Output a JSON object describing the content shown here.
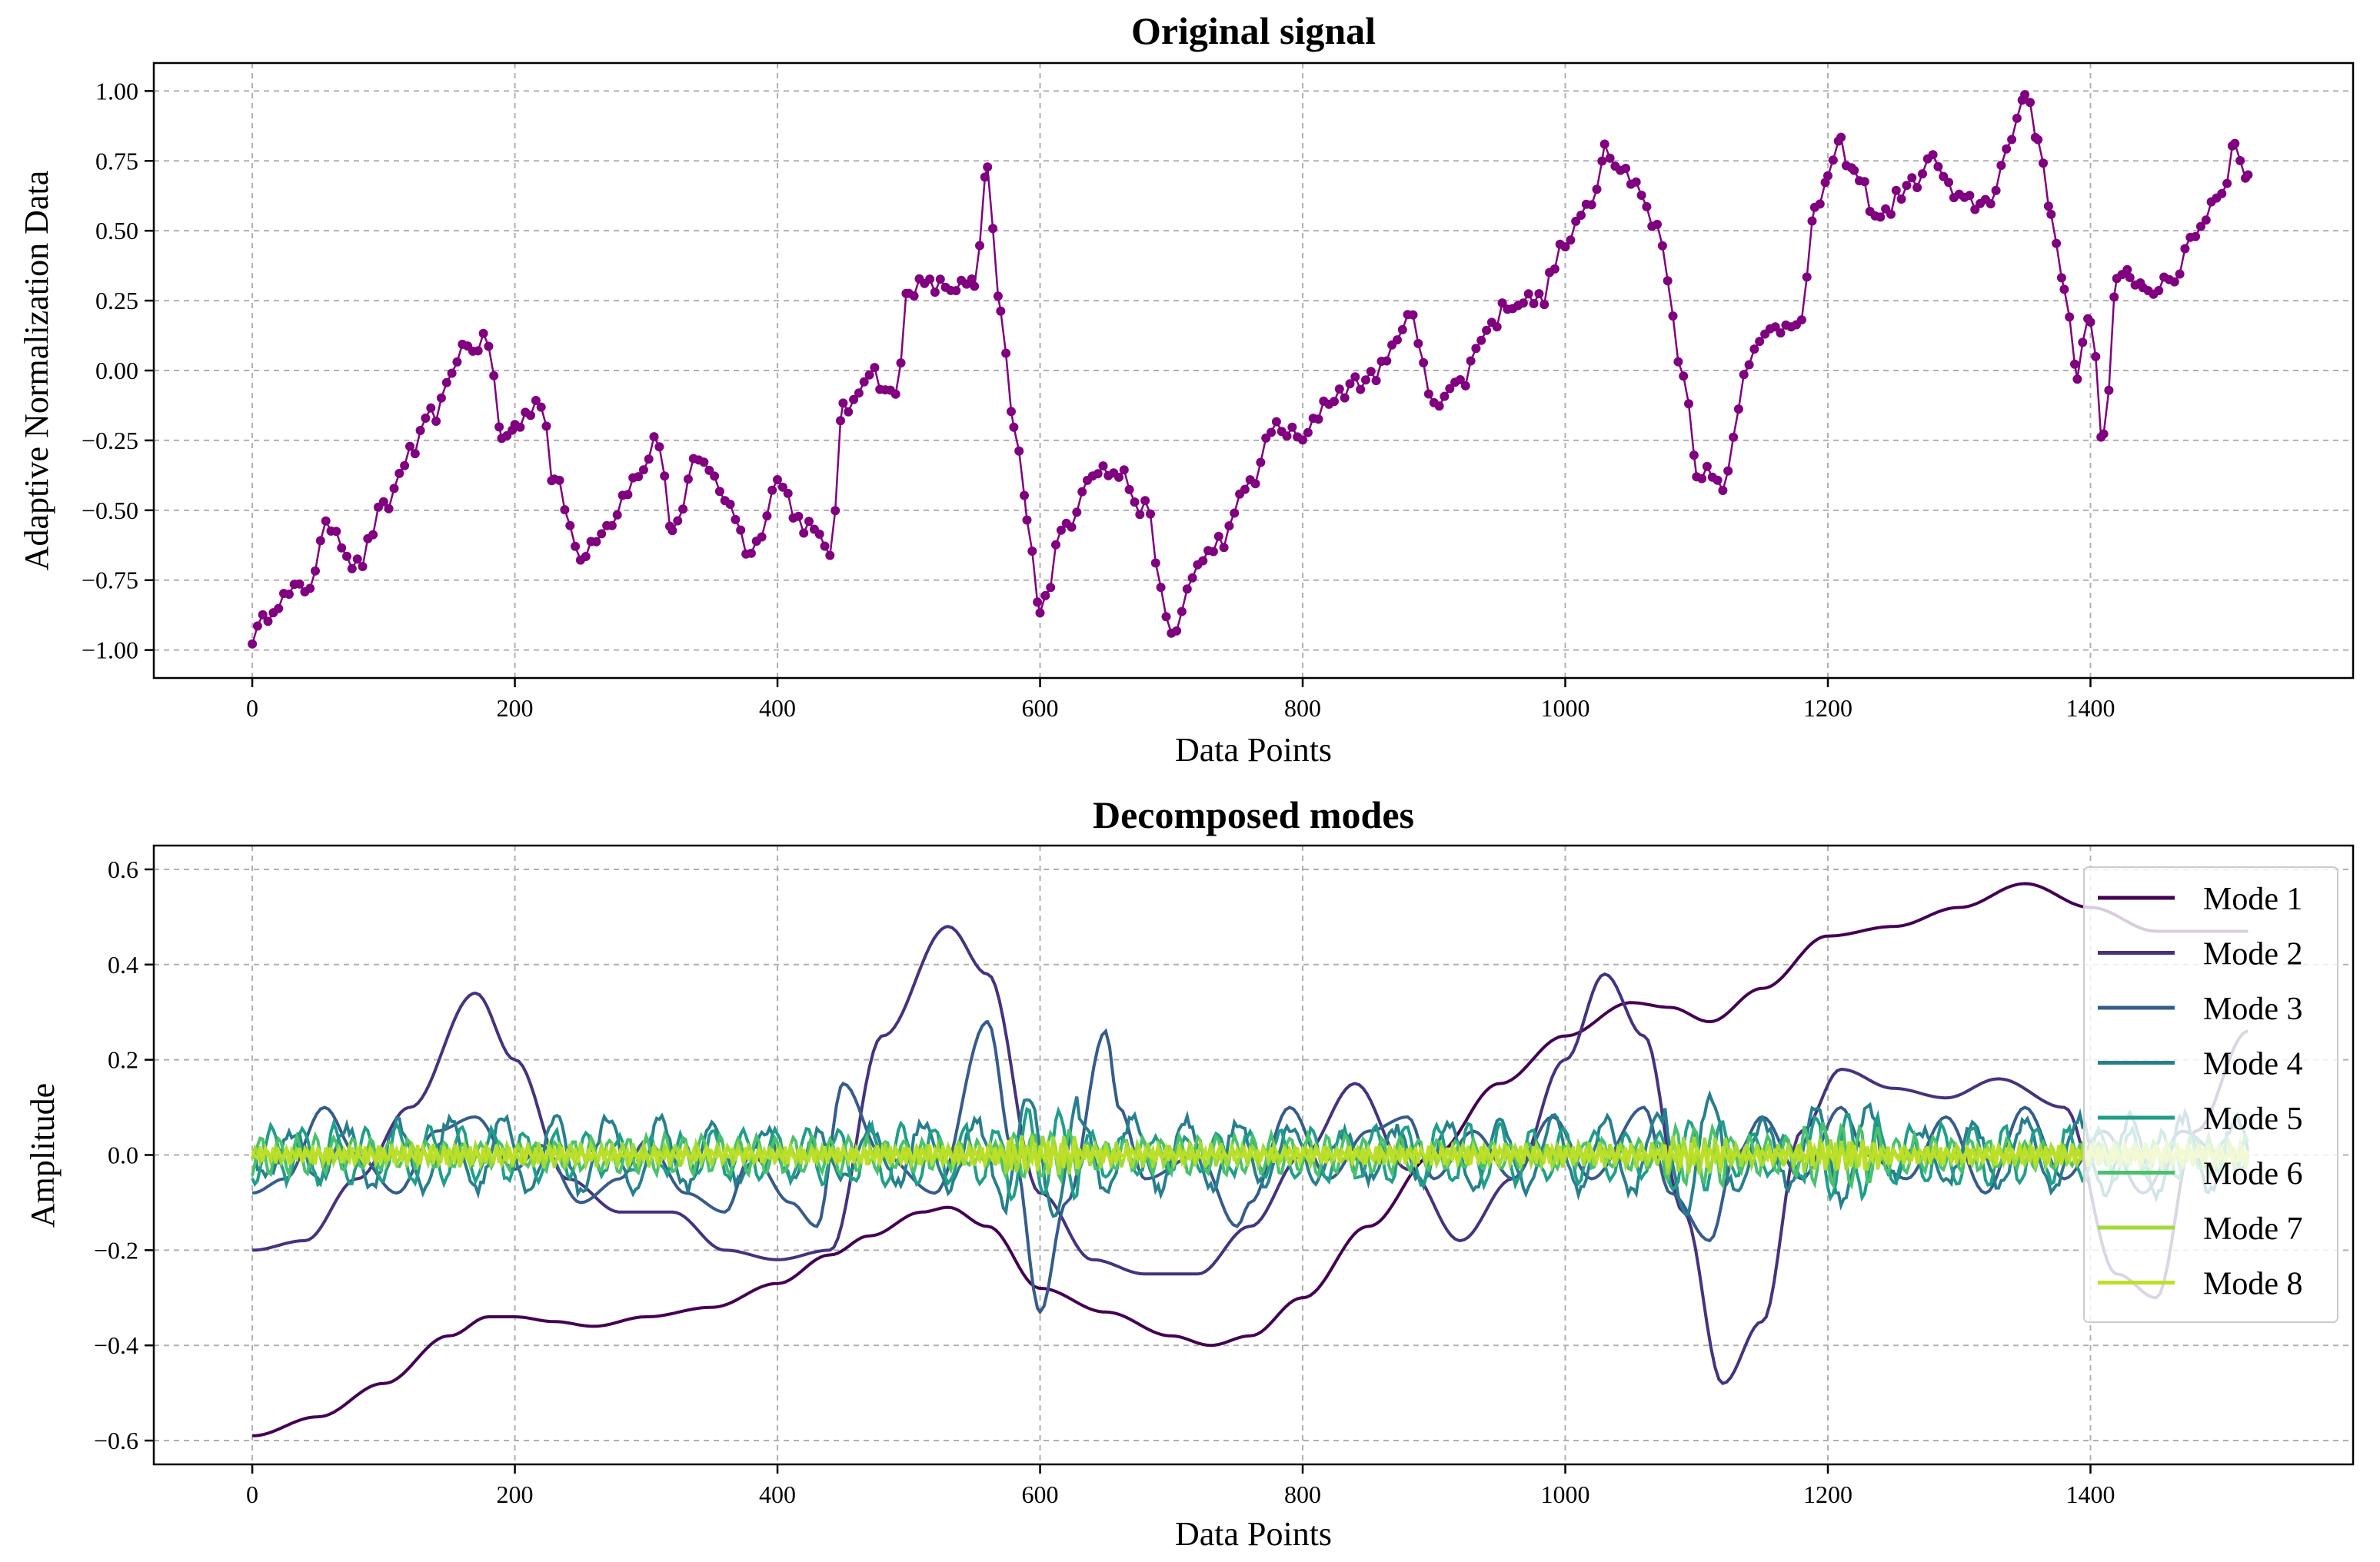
{
  "chart_data": [
    {
      "type": "line",
      "title": "Original signal",
      "xlabel": "Data Points",
      "ylabel": "Adaptive Normalization Data",
      "xlim": [
        -75,
        1600
      ],
      "ylim": [
        -1.1,
        1.1
      ],
      "xticks": [
        0,
        200,
        400,
        600,
        800,
        1000,
        1200,
        1400
      ],
      "xtick_labels": [
        "0",
        "200",
        "400",
        "600",
        "800",
        "1000",
        "1200",
        "1400"
      ],
      "yticks": [
        -1.0,
        -0.75,
        -0.5,
        -0.25,
        0.0,
        0.25,
        0.5,
        0.75,
        1.0
      ],
      "ytick_labels": [
        "−1.00",
        "−0.75",
        "−0.50",
        "−0.25",
        "0.00",
        "0.25",
        "0.50",
        "0.75",
        "1.00"
      ],
      "grid": true,
      "marker": "circle",
      "series": [
        {
          "name": "Original signal",
          "color": "#800080",
          "x": [
            0,
            20,
            40,
            60,
            80,
            100,
            120,
            140,
            160,
            180,
            190,
            200,
            220,
            230,
            250,
            270,
            290,
            310,
            320,
            340,
            360,
            380,
            400,
            420,
            440,
            450,
            470,
            490,
            500,
            520,
            540,
            550,
            560,
            570,
            580,
            590,
            600,
            620,
            640,
            660,
            680,
            700,
            720,
            740,
            760,
            780,
            800,
            820,
            840,
            860,
            880,
            900,
            920,
            940,
            960,
            980,
            1000,
            1020,
            1030,
            1050,
            1070,
            1090,
            1100,
            1120,
            1140,
            1160,
            1180,
            1190,
            1200,
            1210,
            1220,
            1240,
            1260,
            1280,
            1300,
            1320,
            1340,
            1350,
            1360,
            1370,
            1380,
            1390,
            1400,
            1410,
            1420,
            1430,
            1440,
            1460,
            1480,
            1500,
            1510,
            1520
          ],
          "y": [
            -0.95,
            -0.82,
            -0.78,
            -0.55,
            -0.7,
            -0.5,
            -0.3,
            -0.15,
            0.08,
            0.1,
            -0.25,
            -0.2,
            -0.1,
            -0.4,
            -0.65,
            -0.55,
            -0.4,
            -0.25,
            -0.6,
            -0.3,
            -0.45,
            -0.65,
            -0.4,
            -0.55,
            -0.65,
            -0.15,
            0.0,
            -0.1,
            0.3,
            0.3,
            0.3,
            0.3,
            0.7,
            0.2,
            -0.2,
            -0.5,
            -0.85,
            -0.55,
            -0.35,
            -0.37,
            -0.5,
            -0.95,
            -0.7,
            -0.6,
            -0.4,
            -0.2,
            -0.25,
            -0.1,
            -0.05,
            0.0,
            0.2,
            -0.1,
            -0.05,
            0.15,
            0.25,
            0.25,
            0.45,
            0.6,
            0.8,
            0.7,
            0.5,
            0.0,
            -0.35,
            -0.4,
            0.05,
            0.15,
            0.2,
            0.55,
            0.7,
            0.8,
            0.7,
            0.55,
            0.65,
            0.75,
            0.6,
            0.6,
            0.8,
            1.0,
            0.85,
            0.55,
            0.3,
            0.0,
            0.2,
            -0.25,
            0.3,
            0.35,
            0.3,
            0.3,
            0.5,
            0.65,
            0.8,
            0.7
          ]
        }
      ]
    },
    {
      "type": "line",
      "title": "Decomposed modes",
      "xlabel": "Data Points",
      "ylabel": "Amplitude",
      "xlim": [
        -75,
        1600
      ],
      "ylim": [
        -0.65,
        0.65
      ],
      "xticks": [
        0,
        200,
        400,
        600,
        800,
        1000,
        1200,
        1400
      ],
      "xtick_labels": [
        "0",
        "200",
        "400",
        "600",
        "800",
        "1000",
        "1200",
        "1400"
      ],
      "yticks": [
        -0.6,
        -0.4,
        -0.2,
        0.0,
        0.2,
        0.4,
        0.6
      ],
      "ytick_labels": [
        "−0.6",
        "−0.4",
        "−0.2",
        "0.0",
        "0.2",
        "0.4",
        "0.6"
      ],
      "grid": true,
      "legend_position": "top-right",
      "series": [
        {
          "name": "Mode 1",
          "color": "#440154",
          "x": [
            0,
            50,
            100,
            150,
            180,
            200,
            230,
            260,
            300,
            350,
            400,
            440,
            470,
            510,
            530,
            560,
            600,
            650,
            700,
            730,
            760,
            800,
            850,
            900,
            950,
            1000,
            1050,
            1080,
            1110,
            1150,
            1200,
            1250,
            1300,
            1350,
            1400,
            1450,
            1520
          ],
          "y": [
            -0.59,
            -0.55,
            -0.48,
            -0.38,
            -0.34,
            -0.34,
            -0.35,
            -0.36,
            -0.34,
            -0.32,
            -0.27,
            -0.21,
            -0.17,
            -0.12,
            -0.11,
            -0.15,
            -0.28,
            -0.33,
            -0.38,
            -0.4,
            -0.38,
            -0.3,
            -0.15,
            0.0,
            0.15,
            0.25,
            0.32,
            0.31,
            0.28,
            0.35,
            0.46,
            0.48,
            0.52,
            0.57,
            0.52,
            0.47,
            0.47
          ]
        },
        {
          "name": "Mode 2",
          "color": "#46327e",
          "x": [
            0,
            40,
            80,
            120,
            170,
            200,
            240,
            280,
            320,
            360,
            400,
            440,
            480,
            530,
            560,
            600,
            640,
            680,
            720,
            760,
            800,
            840,
            880,
            920,
            960,
            1000,
            1030,
            1060,
            1090,
            1120,
            1150,
            1180,
            1210,
            1250,
            1290,
            1330,
            1380,
            1420,
            1450,
            1480,
            1520
          ],
          "y": [
            -0.2,
            -0.18,
            -0.05,
            0.1,
            0.34,
            0.2,
            -0.05,
            -0.12,
            -0.12,
            -0.2,
            -0.22,
            -0.2,
            0.25,
            0.48,
            0.38,
            -0.08,
            -0.22,
            -0.25,
            -0.25,
            -0.15,
            0.0,
            0.15,
            -0.03,
            -0.18,
            -0.05,
            0.2,
            0.38,
            0.25,
            -0.12,
            -0.48,
            -0.35,
            0.05,
            0.18,
            0.14,
            0.12,
            0.16,
            0.1,
            -0.25,
            -0.3,
            0.05,
            0.26
          ]
        },
        {
          "name": "Mode 3",
          "color": "#365c8d",
          "x": [
            0,
            25,
            55,
            80,
            110,
            140,
            170,
            200,
            220,
            250,
            280,
            300,
            330,
            360,
            380,
            410,
            430,
            450,
            480,
            520,
            560,
            580,
            600,
            620,
            650,
            660,
            680,
            720,
            750,
            760,
            790,
            820,
            850,
            880,
            900,
            930,
            960,
            990,
            1020,
            1060,
            1080,
            1110,
            1130,
            1150,
            1180,
            1210,
            1230,
            1260,
            1290,
            1320,
            1350,
            1380,
            1410,
            1440,
            1470,
            1500,
            1520
          ],
          "y": [
            -0.08,
            -0.05,
            0.1,
            0.0,
            -0.08,
            0.05,
            0.08,
            -0.03,
            0.02,
            -0.1,
            -0.05,
            0.03,
            -0.08,
            -0.12,
            0.0,
            -0.1,
            -0.15,
            0.15,
            0.0,
            -0.08,
            0.28,
            0.0,
            -0.33,
            -0.1,
            0.26,
            0.1,
            -0.05,
            0.0,
            -0.15,
            -0.1,
            0.1,
            -0.05,
            0.05,
            0.08,
            -0.05,
            0.05,
            -0.05,
            0.08,
            -0.05,
            0.1,
            -0.08,
            -0.18,
            0.0,
            0.08,
            -0.05,
            0.1,
            0.0,
            -0.05,
            0.08,
            -0.08,
            0.1,
            -0.05,
            0.05,
            -0.08,
            0.05,
            0.0,
            0.0
          ]
        },
        {
          "name": "Mode 4",
          "color": "#277f8e",
          "series_note": "high-frequency oscillation",
          "amplitude": 0.08,
          "period": 40
        },
        {
          "name": "Mode 5",
          "color": "#1f9e89",
          "amplitude": 0.06,
          "period": 24
        },
        {
          "name": "Mode 6",
          "color": "#4ac16d",
          "amplitude": 0.04,
          "period": 14
        },
        {
          "name": "Mode 7",
          "color": "#a0da39",
          "amplitude": 0.025,
          "period": 8
        },
        {
          "name": "Mode 8",
          "color": "#bddf26",
          "amplitude": 0.02,
          "period": 5
        }
      ]
    }
  ]
}
